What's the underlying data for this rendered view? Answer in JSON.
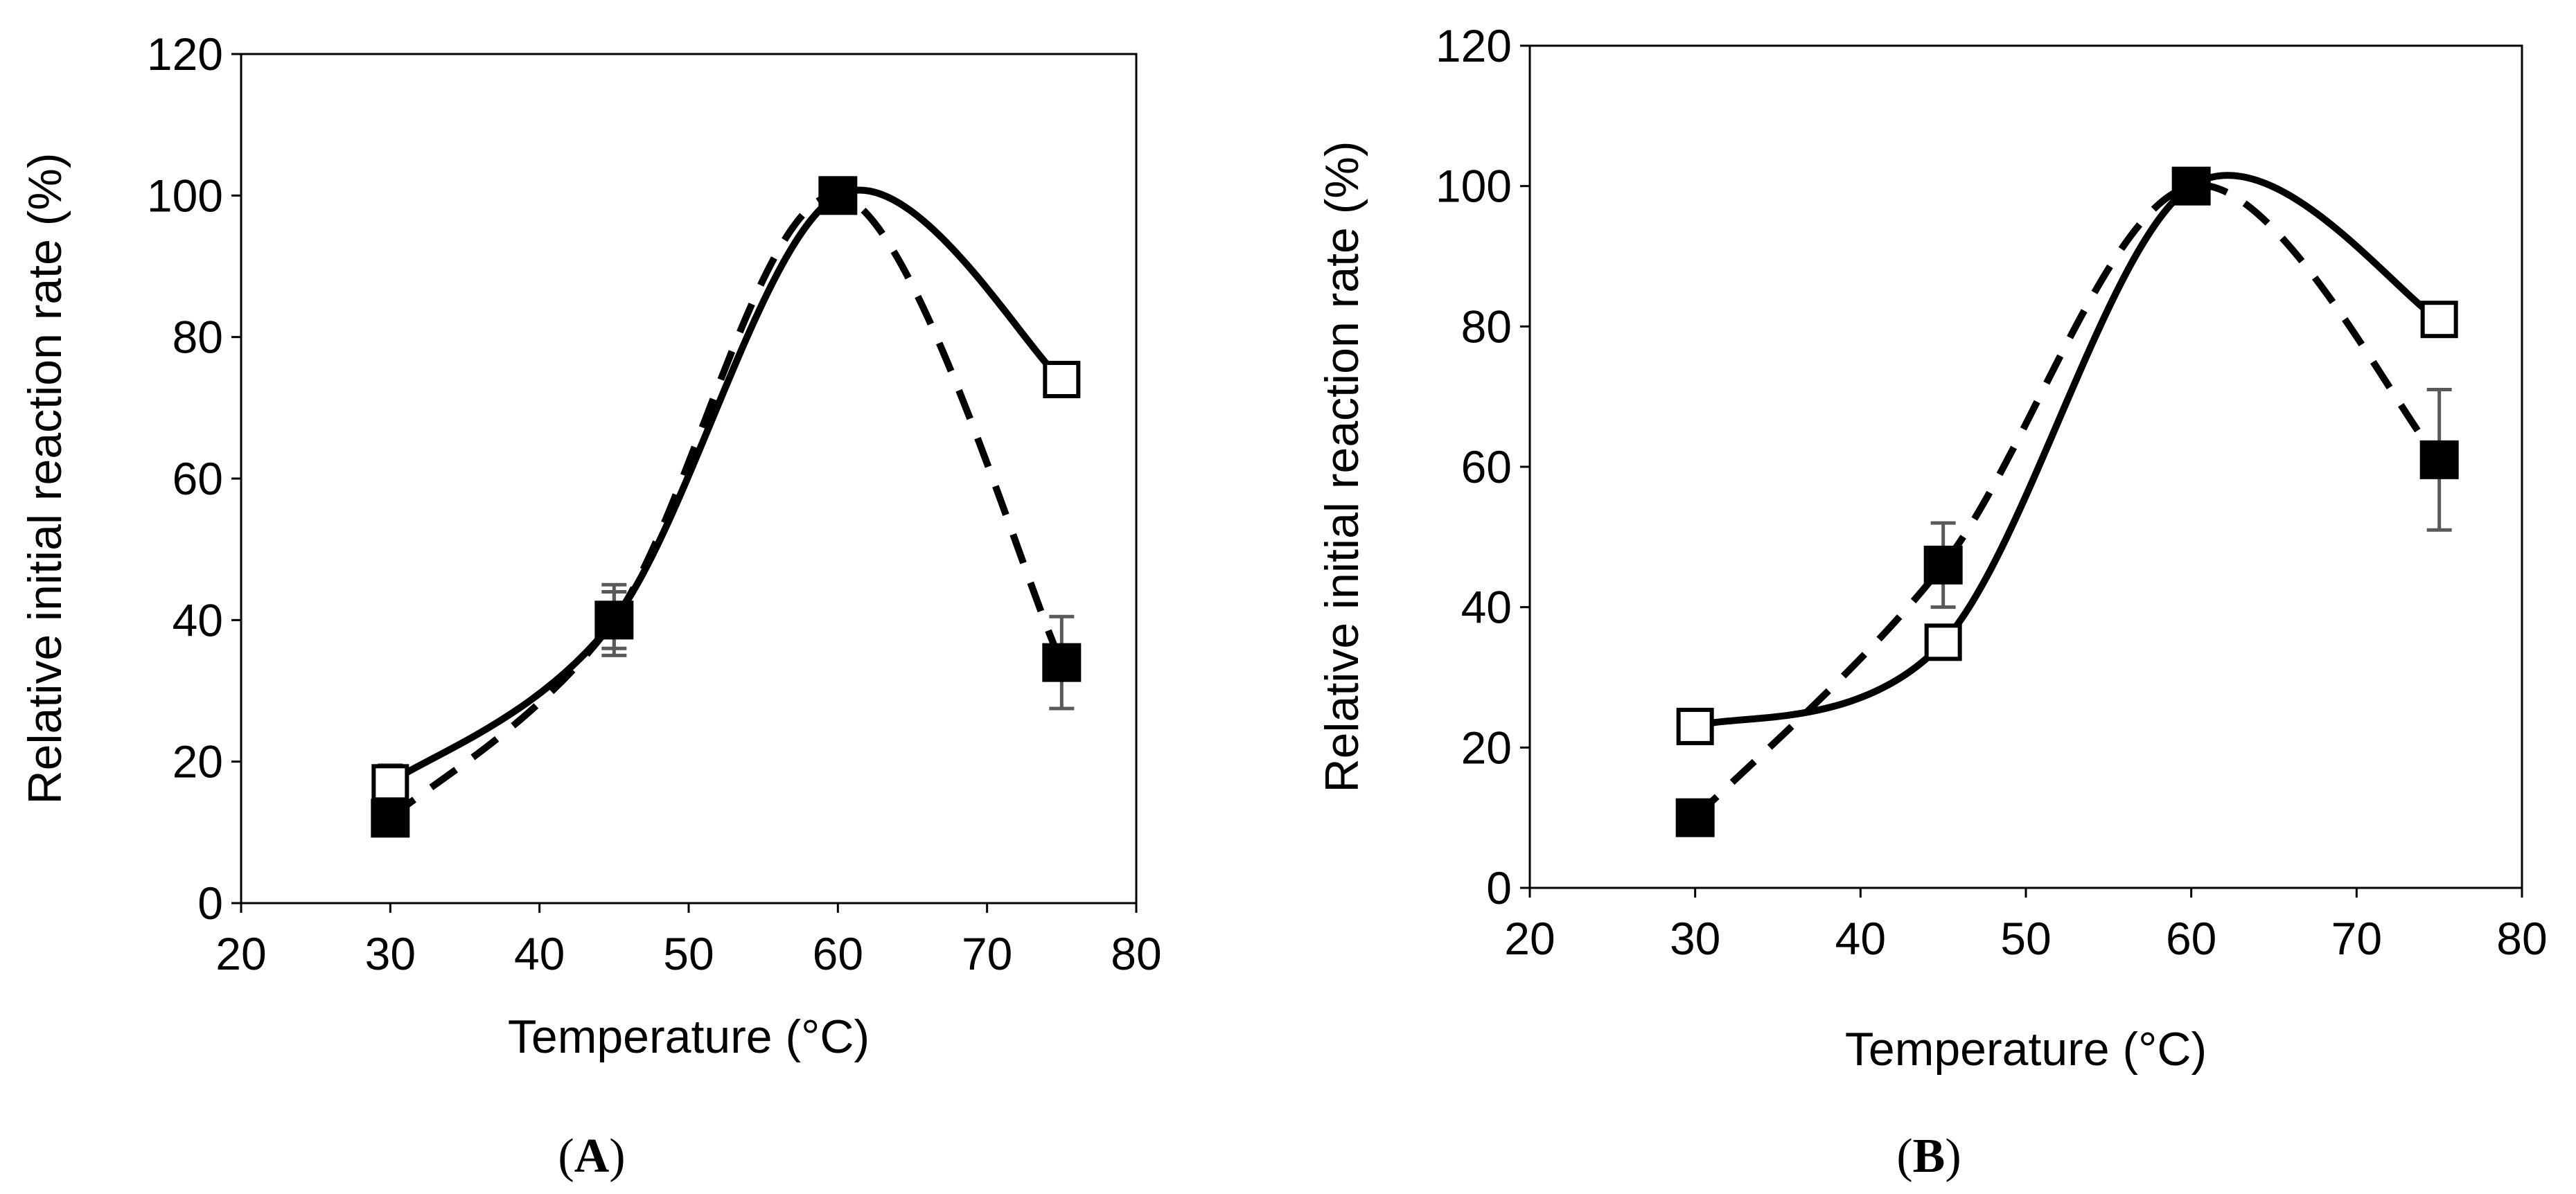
{
  "chart_data": [
    {
      "panel": "(A)",
      "panel_letter": "A",
      "type": "line",
      "title": "",
      "xlabel": "Temperature (°C)",
      "ylabel": "Relative initial reaction rate (%)",
      "xlim": [
        20,
        80
      ],
      "ylim": [
        0,
        120
      ],
      "xticks": [
        20,
        30,
        40,
        50,
        60,
        70,
        80
      ],
      "yticks": [
        0,
        20,
        40,
        60,
        80,
        100,
        120
      ],
      "grid": false,
      "legend": "none",
      "series": [
        {
          "name": "open squares (solid line)",
          "marker": "open-square",
          "line": "solid",
          "x": [
            30,
            45,
            60,
            75
          ],
          "values": [
            17,
            40,
            100,
            74
          ],
          "errors": [
            2.5,
            4,
            0,
            2
          ]
        },
        {
          "name": "filled squares (dashed line)",
          "marker": "filled-square",
          "line": "dashed",
          "x": [
            30,
            45,
            60,
            75
          ],
          "values": [
            12,
            40,
            100,
            34
          ],
          "errors": [
            1.5,
            5,
            0,
            6.5
          ]
        }
      ]
    },
    {
      "panel": "(B)",
      "panel_letter": "B",
      "type": "line",
      "title": "",
      "xlabel": "Temperature (°C)",
      "ylabel": "Relative initial reaction rate (%)",
      "xlim": [
        20,
        80
      ],
      "ylim": [
        0,
        120
      ],
      "xticks": [
        20,
        30,
        40,
        50,
        60,
        70,
        80
      ],
      "yticks": [
        0,
        20,
        40,
        60,
        80,
        100,
        120
      ],
      "grid": false,
      "legend": "none",
      "series": [
        {
          "name": "open squares (solid line)",
          "marker": "open-square",
          "line": "solid",
          "x": [
            30,
            45,
            60,
            75
          ],
          "values": [
            23,
            35,
            100,
            81
          ],
          "errors": [
            1,
            1.5,
            0,
            1.5
          ]
        },
        {
          "name": "filled squares (dashed line)",
          "marker": "filled-square",
          "line": "dashed",
          "x": [
            30,
            45,
            60,
            75
          ],
          "values": [
            10,
            46,
            100,
            61
          ],
          "errors": [
            1,
            6,
            0,
            10
          ]
        }
      ]
    }
  ],
  "style": {
    "line_color": "#000000",
    "error_bar_color": "#595959",
    "axis_color": "#000000",
    "background": "#ffffff"
  }
}
